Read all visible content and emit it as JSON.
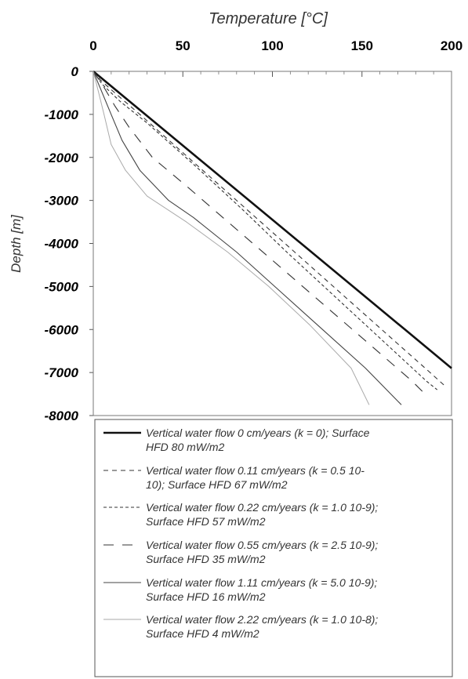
{
  "chart_data": {
    "type": "line",
    "title": "",
    "xlabel": "Temperature [°C]",
    "ylabel": "Depth [m]",
    "xlim": [
      0,
      200
    ],
    "ylim": [
      -8000,
      0
    ],
    "x_ticks": [
      0,
      50,
      100,
      150,
      200
    ],
    "y_ticks": [
      0,
      -1000,
      -2000,
      -3000,
      -4000,
      -5000,
      -6000,
      -7000,
      -8000
    ],
    "x_tick_labels": [
      "0",
      "50",
      "100",
      "150",
      "200"
    ],
    "y_tick_labels": [
      "0",
      "-1000",
      "-2000",
      "-3000",
      "-4000",
      "-5000",
      "-6000",
      "-7000",
      "-8000"
    ],
    "x_axis_position": "top",
    "grid": false,
    "legend_position": "below",
    "series": [
      {
        "name": "Vertical water flow 0 cm/years (k = 0); Surface HFD 80 mW/m2",
        "legend_lines": [
          "Vertical water flow 0 cm/years (k = 0); Surface",
          "HFD 80 mW/m2"
        ],
        "style": "solid-thick",
        "color": "#111111",
        "x": [
          0,
          29,
          58,
          87,
          116,
          145,
          174,
          200
        ],
        "y": [
          0,
          -1000,
          -2000,
          -3000,
          -4000,
          -5000,
          -6000,
          -6900
        ]
      },
      {
        "name": "Vertical water flow 0.11 cm/years (k = 0.5 10-10); Surface HFD 67 mW/m2",
        "legend_lines": [
          "Vertical water flow 0.11 cm/years (k = 0.5 10-",
          "10); Surface HFD 67 mW/m2"
        ],
        "style": "dash-medium",
        "color": "#333333",
        "x": [
          0,
          4,
          12,
          26,
          53,
          80,
          107,
          134,
          161,
          188,
          196
        ],
        "y": [
          0,
          -200,
          -500,
          -1000,
          -2000,
          -3000,
          -4000,
          -5000,
          -6000,
          -7000,
          -7300
        ]
      },
      {
        "name": "Vertical water flow 0.22 cm/years (k = 1.0 10-9); Surface HFD 57 mW/m2",
        "legend_lines": [
          "Vertical water flow 0.22 cm/years (k = 1.0 10-9);",
          "Surface HFD 57 mW/m2"
        ],
        "style": "dash-short",
        "color": "#333333",
        "x": [
          0,
          5,
          15,
          30,
          57,
          83,
          108,
          134,
          160,
          186,
          192
        ],
        "y": [
          0,
          -300,
          -700,
          -1200,
          -2200,
          -3200,
          -4200,
          -5200,
          -6200,
          -7200,
          -7400
        ]
      },
      {
        "name": "Vertical water flow 0.55 cm/years (k = 2.5 10-9); Surface HFD 35 mW/m2",
        "legend_lines": [
          "Vertical water flow 0.55 cm/years (k = 2.5 10-9);",
          "Surface HFD 35 mW/m2"
        ],
        "style": "dash-long",
        "color": "#333333",
        "x": [
          0,
          5,
          12,
          20,
          33,
          53,
          78,
          103,
          128,
          153,
          178,
          184
        ],
        "y": [
          0,
          -300,
          -800,
          -1300,
          -2000,
          -2700,
          -3600,
          -4500,
          -5400,
          -6300,
          -7200,
          -7450
        ]
      },
      {
        "name": "Vertical water flow 1.11 cm/years (k = 5.0 10-9); Surface HFD 16 mW/m2",
        "legend_lines": [
          "Vertical water flow 1.11 cm/years (k = 5.0 10-9);",
          "Surface HFD 16 mW/m2"
        ],
        "style": "solid-thin",
        "color": "#444444",
        "x": [
          0,
          5,
          10,
          16,
          26,
          42,
          56,
          80,
          104,
          128,
          152,
          172
        ],
        "y": [
          0,
          -500,
          -1000,
          -1600,
          -2300,
          -3000,
          -3400,
          -4200,
          -5100,
          -6000,
          -6900,
          -7750
        ]
      },
      {
        "name": "Vertical water flow 2.22 cm/years (k = 1.0 10-8); Surface HFD 4 mW/m2",
        "legend_lines": [
          "Vertical water flow 2.22 cm/years (k = 1.0 10-8);",
          "Surface HFD 4 mW/m2"
        ],
        "style": "solid-light",
        "color": "#aaaaaa",
        "x": [
          0,
          3,
          6,
          10,
          18,
          30,
          52,
          75,
          98,
          121,
          144,
          154
        ],
        "y": [
          0,
          -500,
          -1000,
          -1700,
          -2300,
          -2900,
          -3500,
          -4200,
          -5000,
          -5900,
          -6900,
          -7750
        ]
      }
    ]
  }
}
